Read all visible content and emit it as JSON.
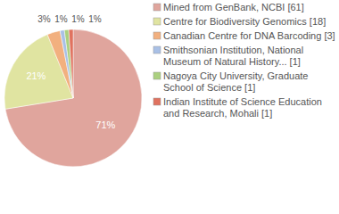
{
  "chart_data": {
    "type": "pie",
    "categories": [
      "Mined from GenBank, NCBI [61]",
      "Centre for Biodiversity Genomics [18]",
      "Canadian Centre for DNA Barcoding [3]",
      "Smithsonian Institution, National Museum of Natural History... [1]",
      "Nagoya City University, Graduate School of Science [1]",
      "Indian Institute of Science Education and Research, Mohali [1]"
    ],
    "values": [
      71,
      21,
      3,
      1,
      1,
      1
    ],
    "value_labels": [
      "71%",
      "21%",
      "3%",
      "1%",
      "1%",
      "1%"
    ],
    "colors": [
      "#e0a59d",
      "#e0e4a1",
      "#f2b07f",
      "#a9c0e6",
      "#abd07f",
      "#e0725f"
    ],
    "data_labels": true,
    "legend": "right"
  }
}
